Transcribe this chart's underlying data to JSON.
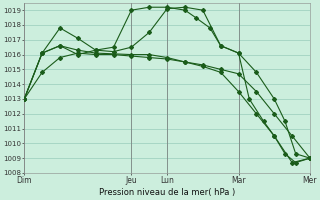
{
  "title": "",
  "xlabel": "Pression niveau de la mer( hPa )",
  "bg_color": "#cceedd",
  "grid_color": "#99ccbb",
  "line_color": "#1a5c1a",
  "ylim": [
    1008,
    1019.5
  ],
  "yticks": [
    1008,
    1009,
    1010,
    1011,
    1012,
    1013,
    1014,
    1015,
    1016,
    1017,
    1018,
    1019
  ],
  "day_labels": [
    "Dim",
    "",
    "",
    "Jeu",
    "Lun",
    "",
    "Mar",
    "",
    "Mer"
  ],
  "day_x": [
    0,
    1,
    2,
    3,
    4,
    5,
    6,
    7,
    8
  ],
  "vline_x": [
    0,
    3,
    4,
    6,
    8
  ],
  "series": [
    {
      "x": [
        0,
        0.5,
        1.0,
        1.5,
        2.0,
        2.5,
        3.0,
        3.5,
        4.0,
        4.5,
        5.0,
        5.5,
        6.0,
        6.5,
        7.0,
        7.5,
        8.0
      ],
      "y": [
        1013.0,
        1014.8,
        1015.8,
        1016.1,
        1016.0,
        1016.0,
        1015.9,
        1015.8,
        1015.7,
        1015.5,
        1015.3,
        1015.0,
        1014.7,
        1013.5,
        1012.0,
        1010.5,
        1009.0
      ]
    },
    {
      "x": [
        0,
        0.5,
        1.0,
        1.5,
        2.0,
        3.0,
        3.5,
        4.0,
        4.5,
        5.0,
        5.5,
        6.0,
        6.5,
        7.0,
        7.5,
        8.0
      ],
      "y": [
        1013.0,
        1016.1,
        1016.6,
        1016.3,
        1016.1,
        1016.0,
        1016.0,
        1015.8,
        1015.5,
        1015.2,
        1014.8,
        1013.5,
        1012.0,
        1010.5,
        1008.7,
        1009.0
      ]
    },
    {
      "x": [
        0,
        0.5,
        1.0,
        1.5,
        2.0,
        2.5,
        3.0,
        3.5,
        4.0,
        4.5,
        5.0,
        5.5,
        6.0,
        6.5,
        7.0,
        7.3,
        7.6,
        8.0
      ],
      "y": [
        1013.0,
        1016.1,
        1017.8,
        1017.1,
        1016.3,
        1016.2,
        1016.5,
        1017.5,
        1019.1,
        1019.2,
        1019.0,
        1016.6,
        1016.1,
        1014.8,
        1013.0,
        1011.5,
        1009.3,
        1009.0
      ]
    },
    {
      "x": [
        0,
        0.5,
        1.0,
        1.5,
        2.0,
        2.5,
        3.0,
        3.5,
        4.0,
        4.5,
        4.8,
        5.2,
        5.5,
        6.0,
        6.3,
        6.7,
        7.0,
        7.3,
        7.6,
        8.0
      ],
      "y": [
        1013.0,
        1016.1,
        1016.6,
        1016.0,
        1016.3,
        1016.5,
        1019.0,
        1019.2,
        1019.2,
        1019.0,
        1018.5,
        1017.8,
        1016.6,
        1016.1,
        1013.0,
        1011.5,
        1010.5,
        1009.3,
        1008.7,
        1009.0
      ]
    }
  ]
}
